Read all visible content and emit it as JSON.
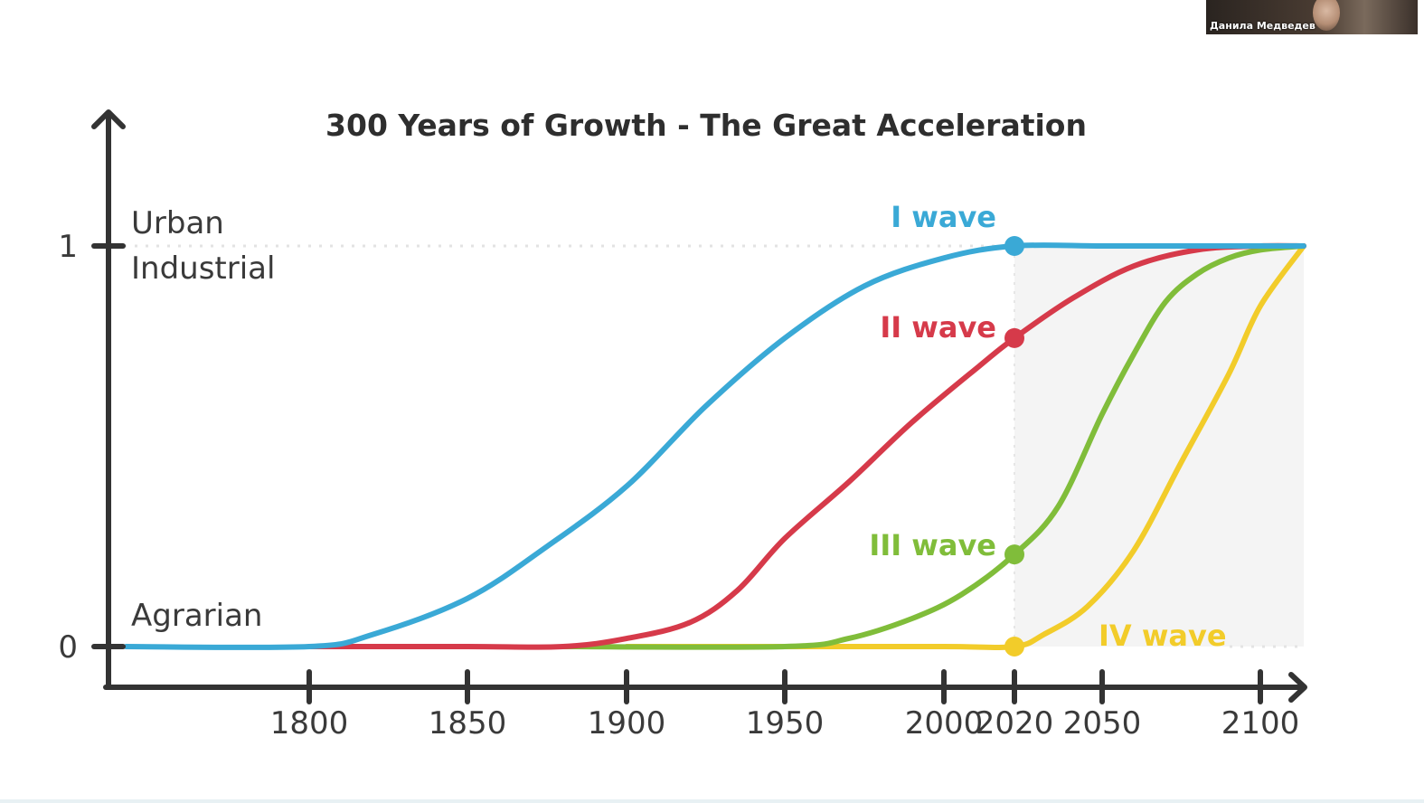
{
  "participant": {
    "name": "Данила Медведев"
  },
  "chart_data": {
    "type": "line",
    "title": "300 Years of Growth - The Great Acceleration",
    "xlabel": "",
    "ylabel": "",
    "xlim": [
      1737,
      2115
    ],
    "ylim": [
      0,
      1
    ],
    "xticks": [
      1800,
      1850,
      1900,
      1950,
      2000,
      2020,
      2050,
      2100
    ],
    "yticks": [
      0,
      1
    ],
    "level_labels": {
      "top_line1": "Urban",
      "top_line2": "Industrial",
      "bottom": "Agrarian"
    },
    "marker_year": 2020,
    "grid": false,
    "legend": "none",
    "series": [
      {
        "name": "I wave",
        "color": "#3aa9d6",
        "x": [
          1742,
          1800,
          1820,
          1850,
          1875,
          1900,
          1925,
          1950,
          1975,
          2000,
          2020,
          2050,
          2080,
          2100,
          2107
        ],
        "y": [
          0,
          0,
          0.03,
          0.12,
          0.25,
          0.4,
          0.6,
          0.77,
          0.9,
          0.97,
          1.0,
          1.0,
          1.0,
          1.0,
          1.0
        ],
        "marker": {
          "x": 2020,
          "y": 1.0
        }
      },
      {
        "name": "II wave",
        "color": "#d63a4a",
        "x": [
          1800,
          1850,
          1880,
          1900,
          1920,
          1935,
          1950,
          1970,
          1990,
          2010,
          2020,
          2040,
          2060,
          2080,
          2100,
          2107
        ],
        "y": [
          0,
          0,
          0,
          0.02,
          0.06,
          0.14,
          0.27,
          0.41,
          0.56,
          0.7,
          0.77,
          0.87,
          0.95,
          0.99,
          1.0,
          1.0
        ],
        "marker": {
          "x": 2020,
          "y": 0.77
        }
      },
      {
        "name": "III wave",
        "color": "#80bd3a",
        "x": [
          1880,
          1950,
          1970,
          1990,
          2005,
          2020,
          2035,
          2050,
          2060,
          2070,
          2080,
          2090,
          2100,
          2107
        ],
        "y": [
          0,
          0,
          0.02,
          0.07,
          0.13,
          0.23,
          0.35,
          0.58,
          0.73,
          0.86,
          0.93,
          0.97,
          0.99,
          1.0
        ],
        "marker": {
          "x": 2020,
          "y": 0.23
        }
      },
      {
        "name": "IV wave",
        "color": "#f2cc2a",
        "x": [
          1900,
          1950,
          2000,
          2020,
          2030,
          2045,
          2060,
          2075,
          2090,
          2100,
          2107
        ],
        "y": [
          0,
          0,
          0,
          0,
          0.03,
          0.1,
          0.24,
          0.46,
          0.68,
          0.85,
          1.0
        ],
        "marker": {
          "x": 2020,
          "y": 0
        }
      }
    ]
  }
}
